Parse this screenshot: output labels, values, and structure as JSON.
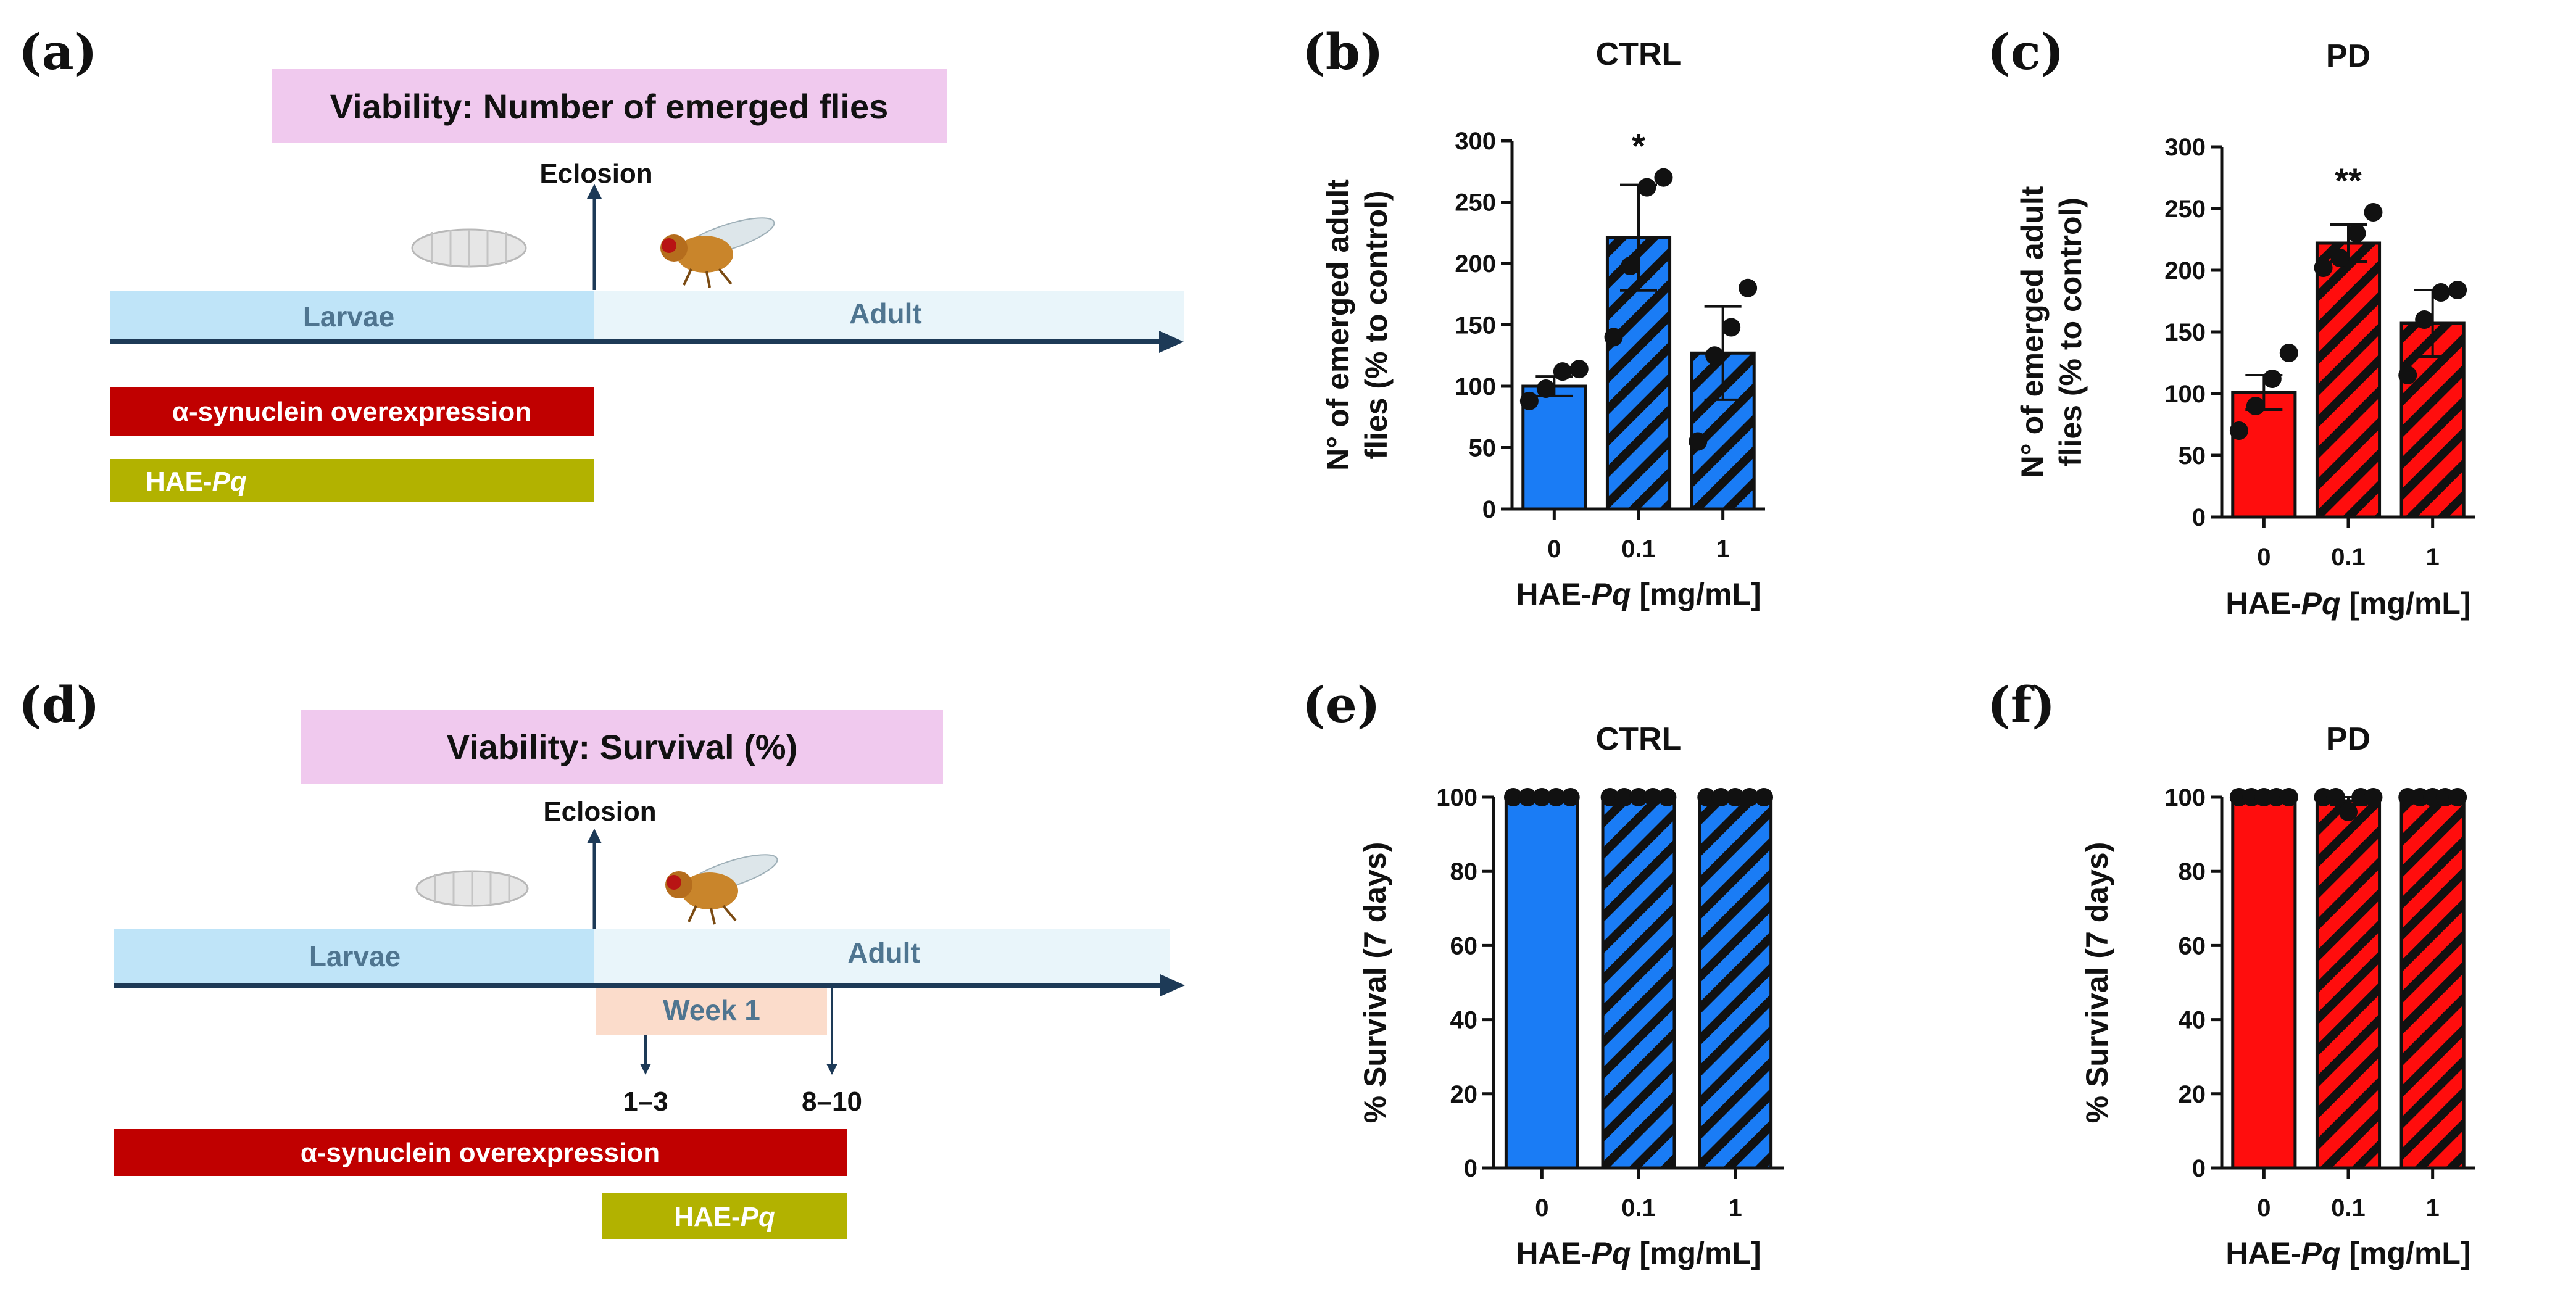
{
  "colors": {
    "ctrl": "#1a7cf5",
    "pd": "#ff0d0d",
    "hatch": "#111111",
    "viability_box": "#f0c9ee",
    "larvae_band": "#bfe4f8",
    "adult_band": "#e9f5fa",
    "timeline": "#1d3a57",
    "synuclein_bar": "#c00000",
    "hae_bar": "#b2b200",
    "week_box": "#fbdccb"
  },
  "panels": {
    "a": {
      "label": "(a)",
      "title": "Viability: Number of emerged flies",
      "eclosion": "Eclosion",
      "larvae": "Larvae",
      "adult": "Adult",
      "synuclein": "α-synuclein overexpression",
      "hae_prefix": "HAE-",
      "hae_italic": "Pq"
    },
    "d": {
      "label": "(d)",
      "title": "Viability: Survival (%)",
      "eclosion": "Eclosion",
      "larvae": "Larvae",
      "adult": "Adult",
      "week": "Week 1",
      "day_early": "1–3",
      "day_late": "8–10",
      "synuclein": "α-synuclein overexpression",
      "hae_prefix": "HAE-",
      "hae_italic": "Pq"
    }
  },
  "chart_data": [
    {
      "panel": "(b)",
      "type": "bar",
      "title": "CTRL",
      "color_key": "ctrl",
      "categories": [
        "0",
        "0.1",
        "1"
      ],
      "values": [
        100,
        221,
        127
      ],
      "errors": [
        8,
        43,
        38
      ],
      "hatched": [
        false,
        true,
        true
      ],
      "points": [
        [
          88,
          98,
          112,
          114
        ],
        [
          140,
          198,
          262,
          270
        ],
        [
          55,
          125,
          148,
          180
        ]
      ],
      "significance": [
        "",
        "*",
        ""
      ],
      "ylim": [
        0,
        300
      ],
      "yticks": [
        0,
        50,
        100,
        150,
        200,
        250,
        300
      ],
      "ylabel_line1": "N° of emerged adult",
      "ylabel_line2": "flies (% to control)",
      "xlabel_prefix": "HAE-",
      "xlabel_italic": "Pq",
      "xlabel_suffix": " [mg/mL]"
    },
    {
      "panel": "(c)",
      "type": "bar",
      "title": "PD",
      "color_key": "pd",
      "categories": [
        "0",
        "0.1",
        "1"
      ],
      "values": [
        101,
        222,
        157
      ],
      "errors": [
        14,
        15,
        27
      ],
      "hatched": [
        false,
        true,
        true
      ],
      "points": [
        [
          70,
          90,
          112,
          133
        ],
        [
          202,
          210,
          230,
          247
        ],
        [
          115,
          160,
          182,
          184
        ]
      ],
      "significance": [
        "",
        "**",
        ""
      ],
      "ylim": [
        0,
        300
      ],
      "yticks": [
        0,
        50,
        100,
        150,
        200,
        250,
        300
      ],
      "ylabel_line1": "N° of emerged adult",
      "ylabel_line2": "flies (% to control)",
      "xlabel_prefix": "HAE-",
      "xlabel_italic": "Pq",
      "xlabel_suffix": " [mg/mL]"
    },
    {
      "panel": "(e)",
      "type": "bar",
      "title": "CTRL",
      "color_key": "ctrl",
      "categories": [
        "0",
        "0.1",
        "1"
      ],
      "values": [
        100,
        100,
        100
      ],
      "errors": [
        0,
        0,
        0
      ],
      "hatched": [
        false,
        true,
        true
      ],
      "points": [
        [
          100,
          100,
          100,
          100,
          100
        ],
        [
          100,
          100,
          100,
          100,
          100
        ],
        [
          100,
          100,
          100,
          100,
          100
        ]
      ],
      "significance": [
        "",
        "",
        ""
      ],
      "ylim": [
        0,
        100
      ],
      "yticks": [
        0,
        20,
        40,
        60,
        80,
        100
      ],
      "ylabel_line1": "% Survival (7 days)",
      "ylabel_line2": "",
      "xlabel_prefix": "HAE-",
      "xlabel_italic": "Pq",
      "xlabel_suffix": " [mg/mL]"
    },
    {
      "panel": "(f)",
      "type": "bar",
      "title": "PD",
      "color_key": "pd",
      "categories": [
        "0",
        "0.1",
        "1"
      ],
      "values": [
        100,
        99,
        100
      ],
      "errors": [
        0,
        1,
        0
      ],
      "hatched": [
        false,
        true,
        true
      ],
      "points": [
        [
          100,
          100,
          100,
          100,
          100
        ],
        [
          100,
          100,
          96,
          100,
          100
        ],
        [
          100,
          100,
          100,
          100,
          100
        ]
      ],
      "significance": [
        "",
        "",
        ""
      ],
      "ylim": [
        0,
        100
      ],
      "yticks": [
        0,
        20,
        40,
        60,
        80,
        100
      ],
      "ylabel_line1": "% Survival (7 days)",
      "ylabel_line2": "",
      "xlabel_prefix": "HAE-",
      "xlabel_italic": "Pq",
      "xlabel_suffix": " [mg/mL]"
    }
  ]
}
